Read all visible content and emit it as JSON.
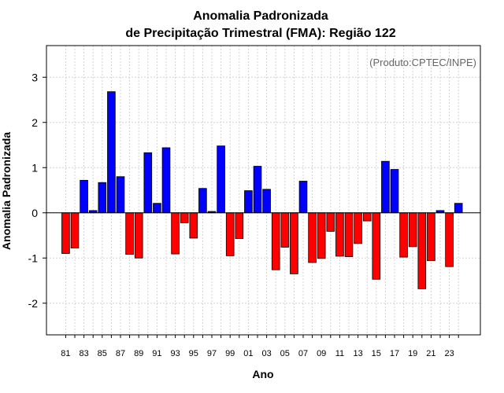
{
  "chart_data": {
    "type": "bar",
    "title_line1": "Anomalia Padronizada",
    "title_line2": "de Precipitação Trimestral (FMA): Região 122",
    "xlabel": "Ano",
    "ylabel": "Anomalia Padronizada",
    "annotation": "(Produto:CPTEC/INPE)",
    "ylim": [
      -2.7,
      3.7
    ],
    "yticks": [
      -2,
      -1,
      0,
      1,
      2,
      3
    ],
    "ytick_labels": [
      "-2",
      "-1",
      "0",
      "1",
      "2",
      "3"
    ],
    "xtick_labels": [
      "81",
      "83",
      "85",
      "87",
      "89",
      "91",
      "93",
      "95",
      "97",
      "99",
      "01",
      "03",
      "05",
      "07",
      "09",
      "11",
      "13",
      "15",
      "17",
      "19",
      "21",
      "23"
    ],
    "categories": [
      "1981",
      "1982",
      "1983",
      "1984",
      "1985",
      "1986",
      "1987",
      "1988",
      "1989",
      "1990",
      "1991",
      "1992",
      "1993",
      "1994",
      "1995",
      "1996",
      "1997",
      "1998",
      "1999",
      "2000",
      "2001",
      "2002",
      "2003",
      "2004",
      "2005",
      "2006",
      "2007",
      "2008",
      "2009",
      "2010",
      "2011",
      "2012",
      "2013",
      "2014",
      "2015",
      "2016",
      "2017",
      "2018",
      "2019",
      "2020",
      "2021",
      "2022",
      "2023",
      "2024"
    ],
    "values": [
      -0.9,
      -0.78,
      0.72,
      0.05,
      0.67,
      2.68,
      0.8,
      -0.92,
      -1.0,
      1.33,
      0.21,
      1.44,
      -0.91,
      -0.22,
      -0.56,
      0.54,
      0.03,
      1.48,
      -0.95,
      -0.57,
      0.49,
      1.03,
      0.52,
      -1.26,
      -0.76,
      -1.35,
      0.7,
      -1.1,
      -1.01,
      -0.41,
      -0.96,
      -0.97,
      -0.68,
      -0.18,
      -1.47,
      1.14,
      0.96,
      -0.98,
      -0.75,
      -1.68,
      -1.06,
      0.05,
      -1.19,
      0.21
    ],
    "positive_color": "#0000ff",
    "negative_color": "#ff0000",
    "grid": true
  }
}
